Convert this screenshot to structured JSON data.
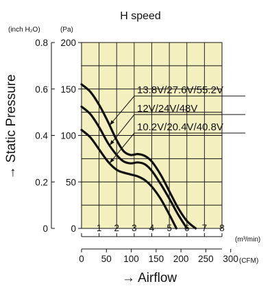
{
  "chart_data": {
    "type": "line",
    "title": "H speed",
    "xlabel": "→ Airflow",
    "ylabel": "→ Static Pressure",
    "x_units": {
      "primary": "(m³/min)",
      "secondary": "(CFM)"
    },
    "y_units": {
      "primary": "(Pa)",
      "secondary": "(inch H₂O)"
    },
    "x_ticks_m3min": [
      "1",
      "2",
      "3",
      "4",
      "5",
      "6",
      "7",
      "8"
    ],
    "x_ticks_cfm": [
      "0",
      "50",
      "100",
      "150",
      "200",
      "250",
      "300"
    ],
    "y_ticks_pa": [
      "0",
      "50",
      "100",
      "150",
      "200"
    ],
    "y_ticks_inh2o": [
      "0",
      "0.2",
      "0.4",
      "0.6",
      "0.8"
    ],
    "xlim": [
      0,
      8
    ],
    "ylim": [
      0,
      200
    ],
    "grid": true,
    "background_color": "#f5f0bf",
    "line_color": "#111111",
    "series": [
      {
        "name": "13.8V/27.6V/55.2V",
        "x": [
          0,
          0.5,
          1.0,
          1.5,
          2.0,
          2.4,
          2.8,
          3.2,
          3.6,
          4.0,
          4.5,
          5.0,
          5.5,
          6.0,
          6.5
        ],
        "y": [
          155,
          147,
          133,
          115,
          95,
          83,
          79,
          80,
          78,
          72,
          58,
          40,
          22,
          8,
          0
        ]
      },
      {
        "name": "12V/24V/48V",
        "x": [
          0,
          0.5,
          1.0,
          1.5,
          2.0,
          2.4,
          2.8,
          3.2,
          3.6,
          4.0,
          4.5,
          5.0,
          5.5,
          6.0
        ],
        "y": [
          131,
          123,
          109,
          92,
          79,
          72,
          70,
          71,
          69,
          62,
          48,
          32,
          15,
          0
        ]
      },
      {
        "name": "10.2V/20.4V/40.8V",
        "x": [
          0,
          0.5,
          1.0,
          1.5,
          2.0,
          2.4,
          2.8,
          3.2,
          3.6,
          4.0,
          4.5,
          5.0,
          5.4
        ],
        "y": [
          106,
          98,
          85,
          72,
          63,
          60,
          58,
          56,
          52,
          45,
          32,
          15,
          0
        ]
      }
    ],
    "legend_placement": "right"
  }
}
